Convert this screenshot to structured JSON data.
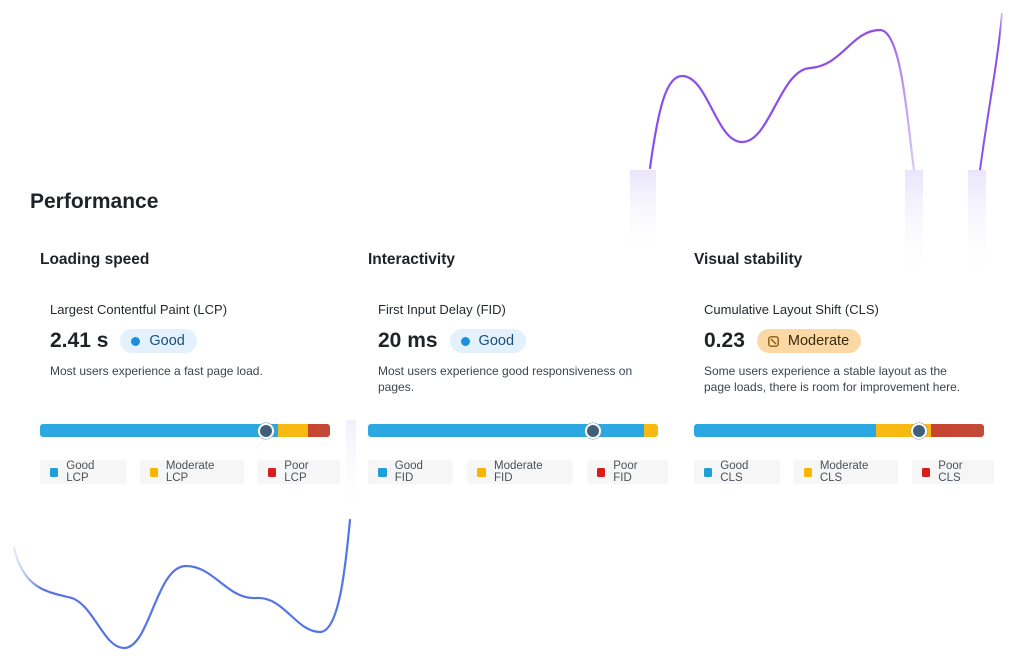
{
  "section": {
    "title": "Performance"
  },
  "cards": [
    {
      "title": "Loading speed",
      "metric": "Largest Contentful Paint (LCP)",
      "value": "2.41 s",
      "status": "Good",
      "description": "Most users experience a fast page load.",
      "distribution": {
        "good": 0.82,
        "moderate": 0.105,
        "poor": 0.075
      },
      "marker": 0.78,
      "legend": [
        "Good LCP",
        "Moderate LCP",
        "Poor LCP"
      ]
    },
    {
      "title": "Interactivity",
      "metric": "First Input Delay (FID)",
      "value": "20 ms",
      "status": "Good",
      "description": "Most users experience good responsiveness on pages.",
      "distribution": {
        "good": 0.952,
        "moderate": 0.048,
        "poor": 0.0
      },
      "marker": 0.775,
      "legend": [
        "Good FID",
        "Moderate FID",
        "Poor FID"
      ]
    },
    {
      "title": "Visual stability",
      "metric": "Cumulative Layout Shift (CLS)",
      "value": "0.23",
      "status": "Moderate",
      "description": "Some users experience a stable layout as the page loads, there is room for improvement here.",
      "distribution": {
        "good": 0.627,
        "moderate": 0.19,
        "poor": 0.183
      },
      "marker": 0.775,
      "legend": [
        "Good CLS",
        "Moderate CLS",
        "Poor CLS"
      ]
    }
  ],
  "colors": {
    "good": "#2ba8e2",
    "moderate": "#f7b912",
    "poor": "#c7452f",
    "badge_good_bg": "#e3f1fc",
    "badge_moderate_bg": "#fcd9a4",
    "deco_blue": "#5b73e8",
    "deco_purple": "#8d4fe0"
  },
  "icons": {
    "good_status": "status-dot-icon",
    "moderate_status": "moderate-status-icon"
  }
}
